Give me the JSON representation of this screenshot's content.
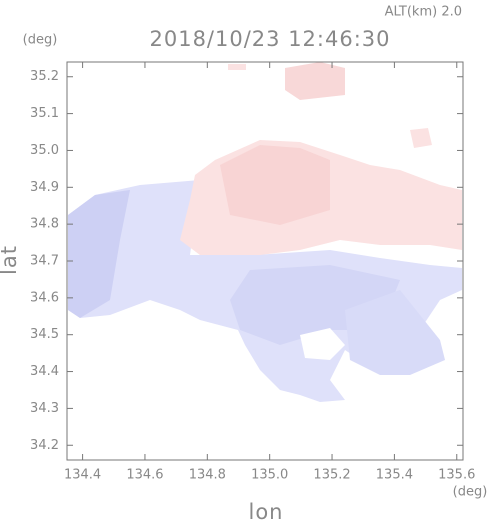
{
  "chart_data": {
    "type": "map",
    "header": "ALT(km) 2.0",
    "title": "2018/10/23 12:46:30",
    "ylabel": "lat",
    "yunit": "(deg)",
    "xlabel": "lon",
    "xunit": "(deg)",
    "xlim": [
      134.35,
      135.62
    ],
    "ylim": [
      34.16,
      35.24
    ],
    "xticks": [
      134.4,
      134.6,
      134.8,
      {
        "value": 135,
        "label": "135.0"
      },
      135.2,
      135.4,
      135.6
    ],
    "yticks": [
      34.2,
      34.3,
      34.4,
      34.5,
      34.6,
      34.7,
      34.8,
      34.9,
      {
        "value": 35,
        "label": "35.0"
      },
      35.1,
      35.2
    ]
  }
}
